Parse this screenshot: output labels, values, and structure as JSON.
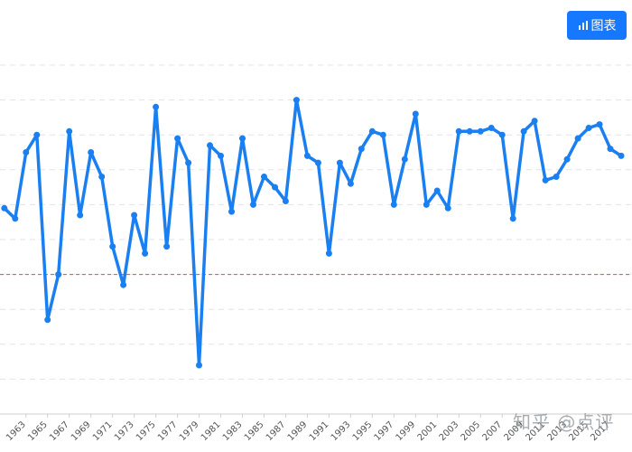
{
  "toolbar": {
    "chart_button_label": "图表",
    "chart_button_icon": "bar-chart-icon"
  },
  "watermark": "知乎 @点评",
  "colors": {
    "line": "#1a7ff0",
    "grid": "#e3e3e3",
    "reference": "#e8484b",
    "button": "#1677ff"
  },
  "chart_data": {
    "type": "line",
    "title": "",
    "xlabel": "",
    "ylabel": "",
    "grid": true,
    "legend": "none",
    "xlim": [
      1960.6,
      2019.0
    ],
    "ylim": [
      0,
      10
    ],
    "gridlines_y": [
      1,
      2,
      3,
      4,
      5,
      6,
      7,
      8,
      9,
      10
    ],
    "reference_line_y": 4,
    "x_tick_labels": [
      "1963",
      "1965",
      "1967",
      "1969",
      "1971",
      "1973",
      "1975",
      "1977",
      "1979",
      "1981",
      "1983",
      "1985",
      "1987",
      "1989",
      "1991",
      "1993",
      "1995",
      "1997",
      "1999",
      "2001",
      "2003",
      "2005",
      "2007",
      "2009",
      "2011",
      "2013",
      "2015",
      "2017"
    ],
    "series": [
      {
        "values": [
          {
            "x": 1961,
            "y": 5.9
          },
          {
            "x": 1962,
            "y": 5.6
          },
          {
            "x": 1963,
            "y": 7.5
          },
          {
            "x": 1964,
            "y": 8.0
          },
          {
            "x": 1965,
            "y": 2.7
          },
          {
            "x": 1966,
            "y": 4.0
          },
          {
            "x": 1967,
            "y": 8.1
          },
          {
            "x": 1968,
            "y": 5.7
          },
          {
            "x": 1969,
            "y": 7.5
          },
          {
            "x": 1970,
            "y": 6.8
          },
          {
            "x": 1971,
            "y": 4.8
          },
          {
            "x": 1972,
            "y": 3.7
          },
          {
            "x": 1973,
            "y": 5.7
          },
          {
            "x": 1974,
            "y": 4.6
          },
          {
            "x": 1975,
            "y": 8.8
          },
          {
            "x": 1976,
            "y": 4.8
          },
          {
            "x": 1977,
            "y": 7.9
          },
          {
            "x": 1978,
            "y": 7.2
          },
          {
            "x": 1979,
            "y": 1.4
          },
          {
            "x": 1980,
            "y": 7.7
          },
          {
            "x": 1981,
            "y": 7.4
          },
          {
            "x": 1982,
            "y": 5.8
          },
          {
            "x": 1983,
            "y": 7.9
          },
          {
            "x": 1984,
            "y": 6.0
          },
          {
            "x": 1985,
            "y": 6.8
          },
          {
            "x": 1986,
            "y": 6.5
          },
          {
            "x": 1987,
            "y": 6.1
          },
          {
            "x": 1988,
            "y": 9.0
          },
          {
            "x": 1989,
            "y": 7.4
          },
          {
            "x": 1990,
            "y": 7.2
          },
          {
            "x": 1991,
            "y": 4.6
          },
          {
            "x": 1992,
            "y": 7.2
          },
          {
            "x": 1993,
            "y": 6.6
          },
          {
            "x": 1994,
            "y": 7.6
          },
          {
            "x": 1995,
            "y": 8.1
          },
          {
            "x": 1996,
            "y": 8.0
          },
          {
            "x": 1997,
            "y": 6.0
          },
          {
            "x": 1998,
            "y": 7.3
          },
          {
            "x": 1999,
            "y": 8.6
          },
          {
            "x": 2000,
            "y": 6.0
          },
          {
            "x": 2001,
            "y": 6.4
          },
          {
            "x": 2002,
            "y": 5.9
          },
          {
            "x": 2003,
            "y": 8.1
          },
          {
            "x": 2004,
            "y": 8.1
          },
          {
            "x": 2005,
            "y": 8.1
          },
          {
            "x": 2006,
            "y": 8.2
          },
          {
            "x": 2007,
            "y": 8.0
          },
          {
            "x": 2008,
            "y": 5.6
          },
          {
            "x": 2009,
            "y": 8.1
          },
          {
            "x": 2010,
            "y": 8.4
          },
          {
            "x": 2011,
            "y": 6.7
          },
          {
            "x": 2012,
            "y": 6.8
          },
          {
            "x": 2013,
            "y": 7.3
          },
          {
            "x": 2014,
            "y": 7.9
          },
          {
            "x": 2015,
            "y": 8.2
          },
          {
            "x": 2016,
            "y": 8.3
          },
          {
            "x": 2017,
            "y": 7.6
          },
          {
            "x": 2018,
            "y": 7.4
          }
        ]
      }
    ]
  }
}
